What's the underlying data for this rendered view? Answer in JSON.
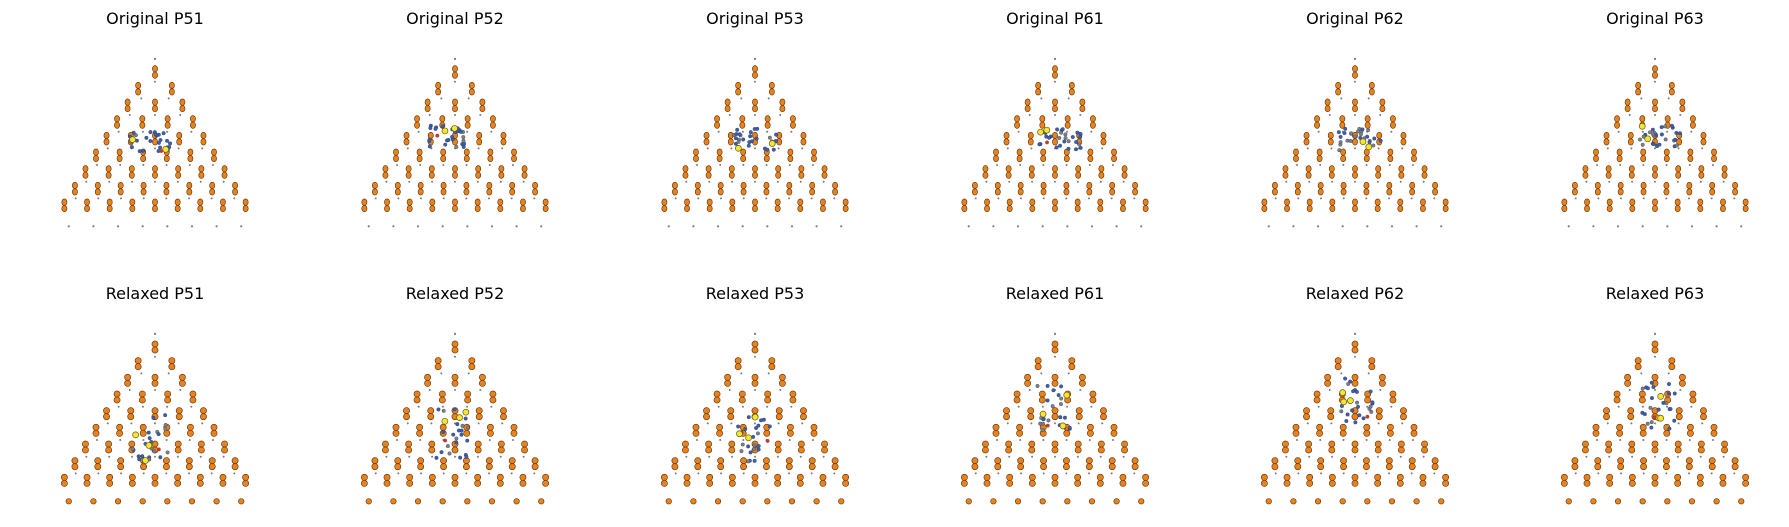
{
  "figure": {
    "rows": 2,
    "cols": 6
  },
  "colors": {
    "host_atom": "#e8821e",
    "host_stroke": "#5a2e00",
    "host_small": "#7a7a7a",
    "defect_blue": "#3f5ea8",
    "defect_gray": "#7f7f7f",
    "defect_yellow": "#f3e43a",
    "defect_red": "#c0392b"
  },
  "chart_data": [
    {
      "type": "scatter",
      "title": "Original P51",
      "structure": "original",
      "cluster": "P51",
      "axes": "off",
      "seed": 51,
      "cluster_center": [
        -0.05,
        0.48
      ]
    },
    {
      "type": "scatter",
      "title": "Original P52",
      "structure": "original",
      "cluster": "P52",
      "axes": "off",
      "seed": 52,
      "cluster_center": [
        -0.05,
        0.52
      ]
    },
    {
      "type": "scatter",
      "title": "Original P53",
      "structure": "original",
      "cluster": "P53",
      "axes": "off",
      "seed": 53,
      "cluster_center": [
        0.0,
        0.5
      ]
    },
    {
      "type": "scatter",
      "title": "Original P61",
      "structure": "original",
      "cluster": "P61",
      "axes": "off",
      "seed": 61,
      "cluster_center": [
        0.05,
        0.5
      ]
    },
    {
      "type": "scatter",
      "title": "Original P62",
      "structure": "original",
      "cluster": "P62",
      "axes": "off",
      "seed": 62,
      "cluster_center": [
        0.05,
        0.5
      ]
    },
    {
      "type": "scatter",
      "title": "Original P63",
      "structure": "original",
      "cluster": "P63",
      "axes": "off",
      "seed": 63,
      "cluster_center": [
        0.05,
        0.52
      ]
    },
    {
      "type": "scatter",
      "title": "Relaxed P51",
      "structure": "relaxed",
      "cluster": "P51",
      "axes": "off",
      "seed": 151,
      "cluster_center": [
        -0.05,
        0.35
      ]
    },
    {
      "type": "scatter",
      "title": "Relaxed P52",
      "structure": "relaxed",
      "cluster": "P52",
      "axes": "off",
      "seed": 152,
      "cluster_center": [
        -0.03,
        0.38
      ]
    },
    {
      "type": "scatter",
      "title": "Relaxed P53",
      "structure": "relaxed",
      "cluster": "P53",
      "axes": "off",
      "seed": 153,
      "cluster_center": [
        0.0,
        0.35
      ]
    },
    {
      "type": "scatter",
      "title": "Relaxed P61",
      "structure": "relaxed",
      "cluster": "P61",
      "axes": "off",
      "seed": 161,
      "cluster_center": [
        0.0,
        0.55
      ]
    },
    {
      "type": "scatter",
      "title": "Relaxed P62",
      "structure": "relaxed",
      "cluster": "P62",
      "axes": "off",
      "seed": 162,
      "cluster_center": [
        0.0,
        0.58
      ]
    },
    {
      "type": "scatter",
      "title": "Relaxed P63",
      "structure": "relaxed",
      "cluster": "P63",
      "axes": "off",
      "seed": 163,
      "cluster_center": [
        0.03,
        0.55
      ]
    }
  ]
}
